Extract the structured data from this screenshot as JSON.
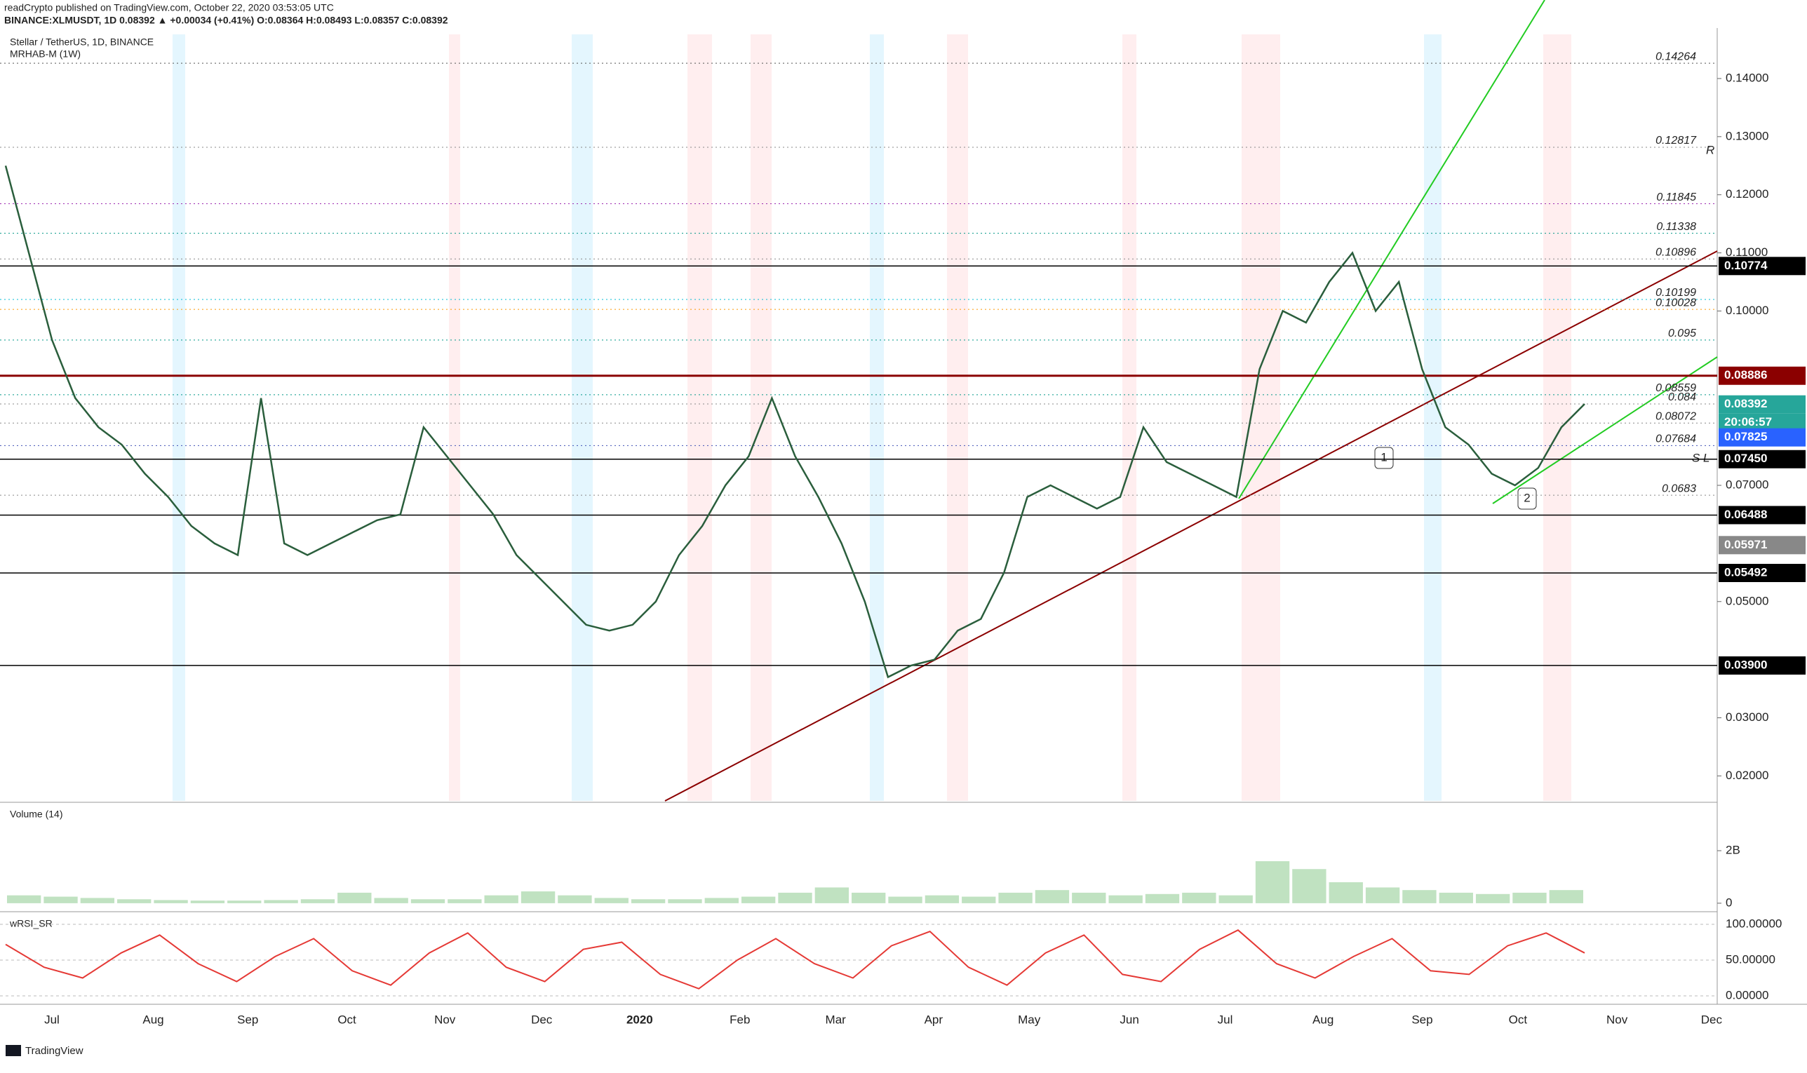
{
  "header": {
    "line1": "readCrypto published on TradingView.com, October 22, 2020 03:53:05 UTC",
    "line2": "BINANCE:XLMUSDT, 1D 0.08392 ▲ +0.00034 (+0.41%) O:0.08364 H:0.08493 L:0.08357 C:0.08392"
  },
  "chart_data": {
    "type": "line",
    "title": "Stellar / TetherUS, 1D, BINANCE",
    "subtitle": "MRHAB-M (1W)",
    "values": [
      0.125,
      0.11,
      0.095,
      0.085,
      0.08,
      0.077,
      0.072,
      0.068,
      0.063,
      0.06,
      0.058,
      0.085,
      0.06,
      0.058,
      0.06,
      0.062,
      0.064,
      0.065,
      0.08,
      0.075,
      0.07,
      0.065,
      0.058,
      0.054,
      0.05,
      0.046,
      0.045,
      0.046,
      0.05,
      0.058,
      0.063,
      0.07,
      0.075,
      0.085,
      0.075,
      0.068,
      0.06,
      0.05,
      0.037,
      0.039,
      0.04,
      0.045,
      0.047,
      0.055,
      0.068,
      0.07,
      0.068,
      0.066,
      0.068,
      0.08,
      0.074,
      0.072,
      0.07,
      0.068,
      0.09,
      0.1,
      0.098,
      0.105,
      0.11,
      0.1,
      0.105,
      0.09,
      0.08,
      0.077,
      0.072,
      0.07,
      0.073,
      0.08,
      0.084
    ],
    "color": "#2a5e3c",
    "ylim": [
      0.0157,
      0.1476
    ],
    "yticks": [
      {
        "value": 0.14,
        "label": "0.14000"
      },
      {
        "value": 0.13,
        "label": "0.13000"
      },
      {
        "value": 0.12,
        "label": "0.12000"
      },
      {
        "value": 0.11,
        "label": "0.11000"
      },
      {
        "value": 0.1,
        "label": "0.10000"
      },
      {
        "value": 0.07,
        "label": "0.07000"
      },
      {
        "value": 0.05,
        "label": "0.05000"
      },
      {
        "value": 0.03,
        "label": "0.03000"
      },
      {
        "value": 0.02,
        "label": "0.02000"
      }
    ],
    "xticks": [
      "Jul",
      "Aug",
      "Sep",
      "Oct",
      "Nov",
      "Dec",
      "2020",
      "Feb",
      "Mar",
      "Apr",
      "May",
      "Jun",
      "Jul",
      "Aug",
      "Sep",
      "Oct",
      "Nov",
      "Dec"
    ],
    "levels": [
      {
        "value": 0.14264,
        "label": "0.14264",
        "color": "#555555"
      },
      {
        "value": 0.12817,
        "label": "0.12817",
        "color": "#888888"
      },
      {
        "value": 0.11845,
        "label": "0.11845",
        "color": "#9c27b0"
      },
      {
        "value": 0.11338,
        "label": "0.11338",
        "color": "#009688"
      },
      {
        "value": 0.10896,
        "label": "0.10896",
        "color": "#888888"
      },
      {
        "value": 0.10199,
        "label": "0.10199",
        "color": "#00bcd4"
      },
      {
        "value": 0.10028,
        "label": "0.10028",
        "color": "#ff9800"
      },
      {
        "value": 0.095,
        "label": "0.095",
        "color": "#009688"
      },
      {
        "value": 0.08559,
        "label": "0.08559",
        "color": "#009688"
      },
      {
        "value": 0.084,
        "label": "0.084",
        "color": "#888888"
      },
      {
        "value": 0.08072,
        "label": "0.08072",
        "color": "#888888"
      },
      {
        "value": 0.07684,
        "label": "0.07684",
        "color": "#3f51b5"
      },
      {
        "value": 0.0683,
        "label": "0.0683",
        "color": "#888888"
      }
    ],
    "price_labels": [
      {
        "value": 0.10774,
        "label": "0.10774",
        "color": "#000000"
      },
      {
        "value": 0.08886,
        "label": "0.08886",
        "color": "#8b0000"
      },
      {
        "value": 0.08392,
        "label": "0.08392",
        "color": "#26a69a"
      },
      {
        "value": 0.07825,
        "label": "0.07825",
        "color": "#2962ff"
      },
      {
        "value": 0.0745,
        "label": "0.07450",
        "color": "#000000"
      },
      {
        "value": 0.06488,
        "label": "0.06488",
        "color": "#000000"
      },
      {
        "value": 0.05971,
        "label": "0.05971",
        "color": "#888888"
      },
      {
        "value": 0.05492,
        "label": "0.05492",
        "color": "#000000"
      },
      {
        "value": 0.039,
        "label": "0.03900",
        "color": "#000000"
      }
    ],
    "countdown": "20:06:57",
    "annotations": [
      "R",
      "S L",
      "1",
      "2"
    ]
  },
  "volume": {
    "title": "Volume (14)",
    "ylim": [
      -270000000,
      3790000000
    ],
    "yticks": [
      {
        "value": 2000000000,
        "label": "2B"
      },
      0
    ],
    "values": [
      300000000,
      250000000,
      200000000,
      150000000,
      120000000,
      100000000,
      100000000,
      120000000,
      150000000,
      400000000,
      200000000,
      150000000,
      150000000,
      300000000,
      450000000,
      300000000,
      200000000,
      150000000,
      150000000,
      200000000,
      250000000,
      400000000,
      600000000,
      400000000,
      250000000,
      300000000,
      250000000,
      400000000,
      500000000,
      400000000,
      300000000,
      350000000,
      400000000,
      300000000,
      1600000000,
      1300000000,
      800000000,
      600000000,
      500000000,
      400000000,
      350000000,
      400000000,
      500000000
    ]
  },
  "rsi": {
    "title": "wRSI_SR",
    "ylim": [
      -9.8,
      115.7
    ],
    "yticks": [
      {
        "value": 100,
        "label": "100.00000"
      },
      {
        "value": 50,
        "label": "50.00000"
      },
      {
        "value": 0,
        "label": "0.00000"
      }
    ],
    "values": [
      72,
      40,
      25,
      60,
      85,
      45,
      20,
      55,
      80,
      35,
      15,
      60,
      88,
      40,
      20,
      65,
      75,
      30,
      10,
      50,
      80,
      45,
      25,
      70,
      90,
      40,
      15,
      60,
      85,
      30,
      20,
      65,
      92,
      45,
      25,
      55,
      80,
      35,
      30,
      70,
      88,
      60
    ]
  },
  "footer": "TradingView"
}
